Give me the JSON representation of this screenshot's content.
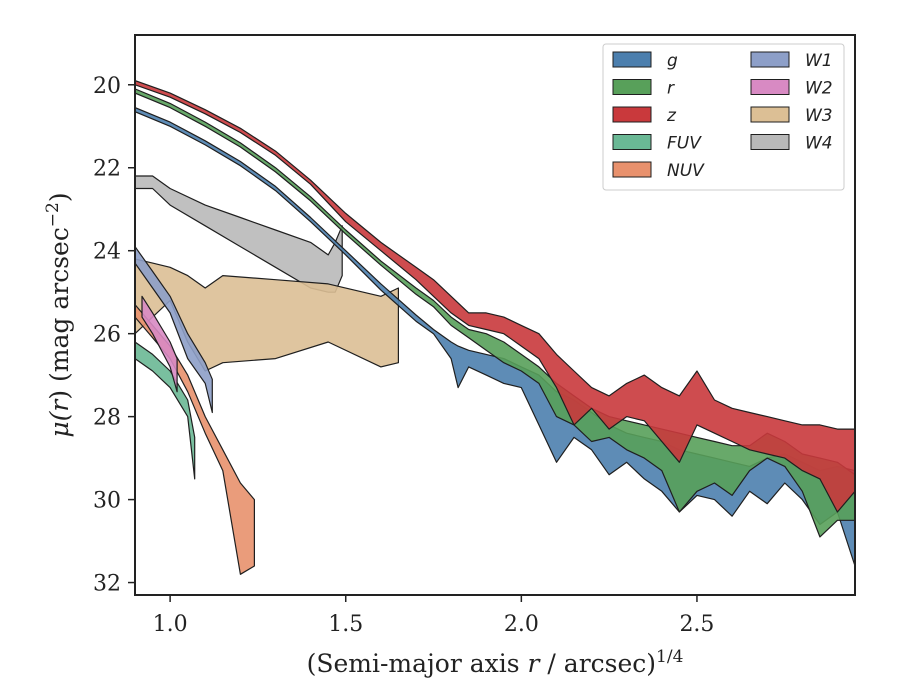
{
  "chart_data": {
    "type": "area",
    "xlabel_main": "(Semi-major axis ",
    "xlabel_var": "r",
    "xlabel_tail": " / arcsec)",
    "xlabel_sup": "1/4",
    "ylabel_main": "μ(",
    "ylabel_var": "r",
    "ylabel_tail": ") (mag arcsec",
    "ylabel_sup": "−2",
    "ylabel_close": ")",
    "xlim": [
      0.9,
      2.95
    ],
    "ylim": [
      32.3,
      18.8
    ],
    "y_inverted": true,
    "xticks": [
      1.0,
      1.5,
      2.0,
      2.5
    ],
    "xtick_labels": [
      "1.0",
      "1.5",
      "2.0",
      "2.5"
    ],
    "yticks": [
      20,
      22,
      24,
      26,
      28,
      30,
      32
    ],
    "ytick_labels": [
      "20",
      "22",
      "24",
      "26",
      "28",
      "30",
      "32"
    ],
    "legend_placement": "top-right",
    "legend_columns": 2,
    "series": [
      {
        "name": "g",
        "color": "#4c7fae",
        "points": [
          [
            0.9,
            20.55,
            20.65
          ],
          [
            1.0,
            20.9,
            21.0
          ],
          [
            1.1,
            21.35,
            21.45
          ],
          [
            1.2,
            21.85,
            21.95
          ],
          [
            1.3,
            22.45,
            22.55
          ],
          [
            1.4,
            23.2,
            23.3
          ],
          [
            1.5,
            24.0,
            24.1
          ],
          [
            1.6,
            24.8,
            24.95
          ],
          [
            1.7,
            25.55,
            25.7
          ],
          [
            1.75,
            25.9,
            26.0
          ],
          [
            1.8,
            26.2,
            26.6
          ],
          [
            1.82,
            26.3,
            27.3
          ],
          [
            1.85,
            26.4,
            26.8
          ],
          [
            1.9,
            26.5,
            27.0
          ],
          [
            1.95,
            26.6,
            27.2
          ],
          [
            2.0,
            26.8,
            27.3
          ],
          [
            2.05,
            27.0,
            28.2
          ],
          [
            2.1,
            27.4,
            29.1
          ],
          [
            2.15,
            27.6,
            28.5
          ],
          [
            2.2,
            27.9,
            28.8
          ],
          [
            2.25,
            28.2,
            29.4
          ],
          [
            2.3,
            28.4,
            29.1
          ],
          [
            2.35,
            28.5,
            29.5
          ],
          [
            2.4,
            28.6,
            29.8
          ],
          [
            2.45,
            28.8,
            30.3
          ],
          [
            2.5,
            28.9,
            29.9
          ],
          [
            2.55,
            29.0,
            30.0
          ],
          [
            2.6,
            29.1,
            30.4
          ],
          [
            2.65,
            29.2,
            29.8
          ],
          [
            2.7,
            29.0,
            30.1
          ],
          [
            2.75,
            28.9,
            29.6
          ],
          [
            2.8,
            29.1,
            30.0
          ],
          [
            2.85,
            29.3,
            30.6
          ],
          [
            2.9,
            29.2,
            30.3
          ],
          [
            2.95,
            29.3,
            31.6
          ]
        ]
      },
      {
        "name": "r",
        "color": "#58a05a",
        "points": [
          [
            0.9,
            20.1,
            20.2
          ],
          [
            1.0,
            20.45,
            20.55
          ],
          [
            1.1,
            20.9,
            21.0
          ],
          [
            1.2,
            21.4,
            21.5
          ],
          [
            1.3,
            22.0,
            22.1
          ],
          [
            1.4,
            22.7,
            22.8
          ],
          [
            1.5,
            23.5,
            23.6
          ],
          [
            1.6,
            24.25,
            24.35
          ],
          [
            1.7,
            24.9,
            25.05
          ],
          [
            1.75,
            25.2,
            25.35
          ],
          [
            1.8,
            25.6,
            25.8
          ],
          [
            1.85,
            25.9,
            26.1
          ],
          [
            1.9,
            26.0,
            26.4
          ],
          [
            1.95,
            26.2,
            26.7
          ],
          [
            2.0,
            26.5,
            26.9
          ],
          [
            2.05,
            26.8,
            27.2
          ],
          [
            2.1,
            27.2,
            28.0
          ],
          [
            2.15,
            27.5,
            28.2
          ],
          [
            2.2,
            27.8,
            28.6
          ],
          [
            2.25,
            28.0,
            28.5
          ],
          [
            2.3,
            28.1,
            28.8
          ],
          [
            2.35,
            28.2,
            29.0
          ],
          [
            2.4,
            28.3,
            29.3
          ],
          [
            2.45,
            28.4,
            30.3
          ],
          [
            2.5,
            28.5,
            29.8
          ],
          [
            2.55,
            28.6,
            29.6
          ],
          [
            2.6,
            28.7,
            29.9
          ],
          [
            2.65,
            28.7,
            29.3
          ],
          [
            2.7,
            28.4,
            29.0
          ],
          [
            2.75,
            28.6,
            29.2
          ],
          [
            2.8,
            28.9,
            29.8
          ],
          [
            2.85,
            29.0,
            30.9
          ],
          [
            2.9,
            29.1,
            30.5
          ],
          [
            2.95,
            29.4,
            30.5
          ]
        ]
      },
      {
        "name": "z",
        "color": "#c9393c",
        "points": [
          [
            0.9,
            19.9,
            20.0
          ],
          [
            1.0,
            20.2,
            20.3
          ],
          [
            1.1,
            20.6,
            20.7
          ],
          [
            1.2,
            21.05,
            21.15
          ],
          [
            1.3,
            21.6,
            21.7
          ],
          [
            1.4,
            22.3,
            22.4
          ],
          [
            1.5,
            23.1,
            23.3
          ],
          [
            1.6,
            23.8,
            24.0
          ],
          [
            1.7,
            24.4,
            24.7
          ],
          [
            1.75,
            24.7,
            25.1
          ],
          [
            1.8,
            25.1,
            25.5
          ],
          [
            1.85,
            25.5,
            25.8
          ],
          [
            1.9,
            25.5,
            25.9
          ],
          [
            1.95,
            25.6,
            26.0
          ],
          [
            2.0,
            25.8,
            26.3
          ],
          [
            2.05,
            26.0,
            26.6
          ],
          [
            2.1,
            26.5,
            27.3
          ],
          [
            2.15,
            26.9,
            28.2
          ],
          [
            2.2,
            27.3,
            27.8
          ],
          [
            2.25,
            27.5,
            28.3
          ],
          [
            2.3,
            27.2,
            28.0
          ],
          [
            2.35,
            27.0,
            28.1
          ],
          [
            2.4,
            27.3,
            28.6
          ],
          [
            2.45,
            27.5,
            29.1
          ],
          [
            2.5,
            26.9,
            28.2
          ],
          [
            2.55,
            27.6,
            28.4
          ],
          [
            2.6,
            27.8,
            28.6
          ],
          [
            2.65,
            27.9,
            28.8
          ],
          [
            2.7,
            28.0,
            28.9
          ],
          [
            2.75,
            28.1,
            29.0
          ],
          [
            2.8,
            28.2,
            29.3
          ],
          [
            2.85,
            28.2,
            29.5
          ],
          [
            2.9,
            28.3,
            30.3
          ],
          [
            2.95,
            28.3,
            29.8
          ]
        ]
      },
      {
        "name": "FUV",
        "color": "#6ab895",
        "points": [
          [
            0.9,
            26.2,
            26.6
          ],
          [
            0.95,
            26.5,
            26.9
          ],
          [
            1.0,
            26.9,
            27.3
          ],
          [
            1.05,
            27.6,
            28.0
          ],
          [
            1.07,
            28.5,
            29.5
          ]
        ]
      },
      {
        "name": "NUV",
        "color": "#e8916d",
        "points": [
          [
            0.9,
            25.3,
            25.6
          ],
          [
            0.95,
            25.8,
            26.1
          ],
          [
            1.0,
            26.3,
            26.6
          ],
          [
            1.05,
            27.0,
            27.4
          ],
          [
            1.1,
            28.0,
            28.4
          ],
          [
            1.15,
            28.8,
            29.3
          ],
          [
            1.2,
            29.6,
            31.8
          ],
          [
            1.24,
            30.0,
            31.6
          ]
        ]
      },
      {
        "name": "W1",
        "color": "#8d9fc8",
        "points": [
          [
            0.9,
            23.9,
            24.3
          ],
          [
            0.95,
            24.5,
            24.9
          ],
          [
            1.0,
            25.1,
            25.5
          ],
          [
            1.05,
            26.0,
            26.6
          ],
          [
            1.1,
            26.7,
            27.2
          ],
          [
            1.12,
            27.1,
            27.9
          ]
        ]
      },
      {
        "name": "W2",
        "color": "#d88ac3",
        "points": [
          [
            0.92,
            25.1,
            25.6
          ],
          [
            0.95,
            25.5,
            26.0
          ],
          [
            1.0,
            26.2,
            26.8
          ],
          [
            1.02,
            26.6,
            27.4
          ]
        ]
      },
      {
        "name": "W3",
        "color": "#dcbf95",
        "points": [
          [
            0.9,
            24.2,
            26.0
          ],
          [
            0.95,
            24.3,
            25.6
          ],
          [
            1.0,
            24.4,
            25.2
          ],
          [
            1.05,
            24.6,
            26.2
          ],
          [
            1.1,
            24.9,
            26.9
          ],
          [
            1.15,
            24.6,
            26.7
          ],
          [
            1.3,
            24.7,
            26.6
          ],
          [
            1.45,
            24.8,
            26.2
          ],
          [
            1.6,
            25.1,
            26.8
          ],
          [
            1.65,
            24.9,
            26.7
          ]
        ]
      },
      {
        "name": "W4",
        "color": "#b9b9b9",
        "points": [
          [
            0.9,
            22.2,
            22.5
          ],
          [
            0.95,
            22.2,
            22.5
          ],
          [
            1.0,
            22.5,
            22.9
          ],
          [
            1.1,
            22.9,
            23.4
          ],
          [
            1.2,
            23.2,
            23.9
          ],
          [
            1.3,
            23.5,
            24.4
          ],
          [
            1.4,
            23.8,
            24.9
          ],
          [
            1.45,
            24.1,
            25.0
          ],
          [
            1.47,
            23.8,
            25.0
          ],
          [
            1.49,
            23.4,
            24.6
          ]
        ]
      }
    ]
  }
}
